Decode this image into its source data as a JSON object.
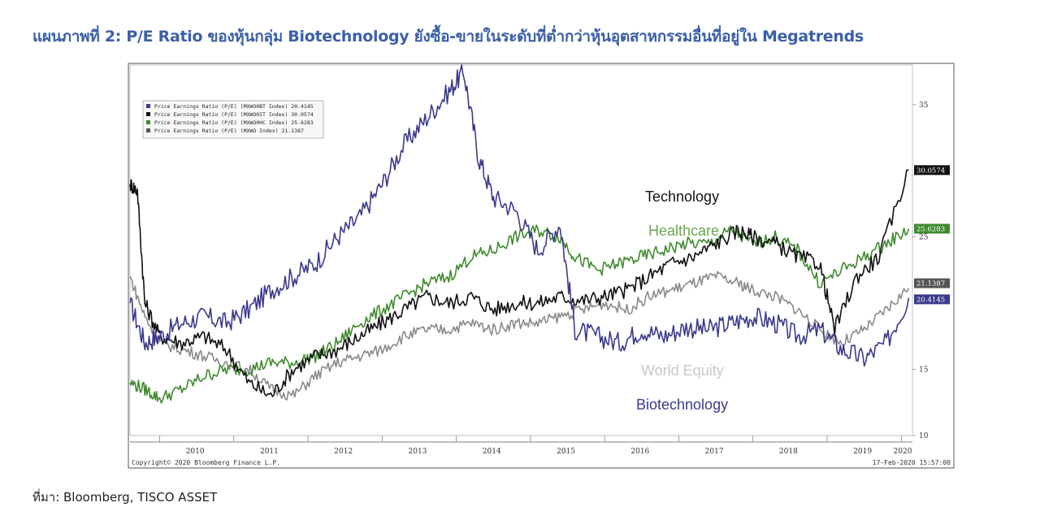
{
  "title": "แผนภาพที่ 2: P/E Ratio  ของหุ้นกลุ่ม Biotechnology ยังซื้อ-ขายในระดับที่ต่ำกว่าหุ้นอุตสาหกรรมอื่นที่อยู่ใน Megatrends",
  "source": "ที่มา: Bloomberg, TISCO ASSET",
  "copyright": "Copyright© 2020 Bloomberg Finance L.P.",
  "timestamp": "17-Feb-2020 15:57:00",
  "annotations": {
    "technology": "Technology",
    "healthcare": "Healthcare",
    "world": "World Equity",
    "biotech": "Biotechnology"
  },
  "colors": {
    "biotech": "#3b3a8c",
    "tech": "#111111",
    "health": "#3f8a2e",
    "world": "#8a8a8a",
    "healthcare_label": "#6aa84f",
    "world_label": "#c8c8c8"
  },
  "chart_data": {
    "type": "line",
    "x_ticks": [
      "2010",
      "2011",
      "2012",
      "2013",
      "2014",
      "2015",
      "2016",
      "2017",
      "2018",
      "2019",
      "2020"
    ],
    "y_ticks": [
      "10",
      "15",
      "25",
      "35"
    ],
    "ylim": [
      10,
      38
    ],
    "xlim": [
      2009.6,
      2020.15
    ],
    "legend": [
      "Price Earnings Ratio (P/E) (MXWO0BT Index) 20.4145",
      "Price Earnings Ratio (P/E) (MXWO0IT Index) 30.0574",
      "Price Earnings Ratio (P/E) (MXWO0HC Index) 25.6283",
      "Price Earnings Ratio (P/E) (MXWO Index)    21.1387"
    ],
    "series": [
      {
        "name": "Price Earnings Ratio (P/E) (MXWO0BT Index)",
        "last": "20.4145",
        "x": [
          2009.6,
          2009.8,
          2010.0,
          2010.3,
          2010.6,
          2010.9,
          2011.2,
          2011.5,
          2011.8,
          2012.1,
          2012.4,
          2012.7,
          2013.0,
          2013.3,
          2013.6,
          2013.9,
          2014.1,
          2014.3,
          2014.5,
          2014.8,
          2015.1,
          2015.4,
          2015.6,
          2015.9,
          2016.2,
          2016.5,
          2016.8,
          2017.1,
          2017.4,
          2017.7,
          2018.0,
          2018.3,
          2018.6,
          2018.9,
          2019.2,
          2019.5,
          2019.8,
          2020.1
        ],
        "y": [
          20,
          17,
          17.5,
          18.5,
          19,
          18.5,
          19.5,
          21,
          22,
          23,
          25,
          26.5,
          29,
          32,
          34,
          36,
          37.5,
          31,
          28,
          27,
          24,
          26,
          18,
          17.5,
          17,
          18,
          17.5,
          18.2,
          18,
          18.5,
          19,
          18.5,
          17.5,
          18,
          16.5,
          15.8,
          17,
          20.4
        ]
      },
      {
        "name": "Price Earnings Ratio (P/E) (MXWO0IT Index)",
        "last": "30.0574",
        "x": [
          2009.6,
          2009.7,
          2009.8,
          2010.0,
          2010.3,
          2010.6,
          2010.9,
          2011.2,
          2011.5,
          2011.8,
          2012.1,
          2012.4,
          2012.7,
          2013.0,
          2013.3,
          2013.6,
          2013.9,
          2014.2,
          2014.5,
          2014.8,
          2015.1,
          2015.4,
          2015.7,
          2016.0,
          2016.3,
          2016.6,
          2016.9,
          2017.2,
          2017.5,
          2017.8,
          2018.0,
          2018.3,
          2018.6,
          2018.9,
          2019.1,
          2019.4,
          2019.7,
          2020.1
        ],
        "y": [
          29,
          28.5,
          20,
          17.5,
          17,
          17.5,
          16.5,
          14,
          13,
          15,
          16,
          16.5,
          17.5,
          18.5,
          19.5,
          20.5,
          20,
          20.5,
          19.5,
          20,
          20,
          20.5,
          20.2,
          20.5,
          21,
          22,
          23,
          23.5,
          24.5,
          25.5,
          25,
          24.5,
          23.5,
          23,
          18,
          22,
          23.5,
          30.06
        ]
      },
      {
        "name": "Price Earnings Ratio (P/E) (MXWO0HC Index)",
        "last": "25.6283",
        "x": [
          2009.6,
          2009.8,
          2010.0,
          2010.3,
          2010.6,
          2010.9,
          2011.2,
          2011.5,
          2011.8,
          2012.1,
          2012.4,
          2012.7,
          2013.0,
          2013.3,
          2013.6,
          2013.9,
          2014.2,
          2014.5,
          2014.8,
          2015.1,
          2015.4,
          2015.6,
          2015.9,
          2016.2,
          2016.5,
          2016.8,
          2017.1,
          2017.4,
          2017.7,
          2018.0,
          2018.3,
          2018.6,
          2018.9,
          2019.2,
          2019.5,
          2019.8,
          2020.1
        ],
        "y": [
          14,
          13.5,
          12.8,
          13.5,
          14.5,
          15,
          15,
          15.5,
          15.5,
          16,
          17,
          18.5,
          19.5,
          20.5,
          21.5,
          22,
          23.5,
          24,
          25,
          25.5,
          25,
          23.5,
          22.5,
          23,
          23.5,
          24,
          24.5,
          24.5,
          25.5,
          24.5,
          25,
          24,
          21.5,
          22.5,
          23.5,
          24.5,
          25.63
        ]
      },
      {
        "name": "Price Earnings Ratio (P/E) (MXWO Index)",
        "last": "21.1387",
        "x": [
          2009.6,
          2009.8,
          2010.0,
          2010.3,
          2010.6,
          2010.9,
          2011.2,
          2011.5,
          2011.8,
          2012.1,
          2012.4,
          2012.7,
          2013.0,
          2013.3,
          2013.6,
          2013.9,
          2014.2,
          2014.5,
          2014.8,
          2015.1,
          2015.4,
          2015.7,
          2016.0,
          2016.3,
          2016.6,
          2016.9,
          2017.2,
          2017.5,
          2017.8,
          2018.0,
          2018.3,
          2018.6,
          2018.9,
          2019.2,
          2019.5,
          2019.8,
          2020.1
        ],
        "y": [
          22,
          19,
          17,
          16.5,
          16,
          15.5,
          15,
          13.5,
          13,
          14.5,
          15.5,
          16,
          16.5,
          17.5,
          18,
          18,
          18.5,
          18,
          18.5,
          18.5,
          19,
          19.5,
          20,
          19.5,
          20.5,
          21,
          21.5,
          22,
          21.5,
          21,
          20.5,
          19.5,
          18,
          17,
          18,
          19.5,
          21.14
        ]
      }
    ]
  }
}
